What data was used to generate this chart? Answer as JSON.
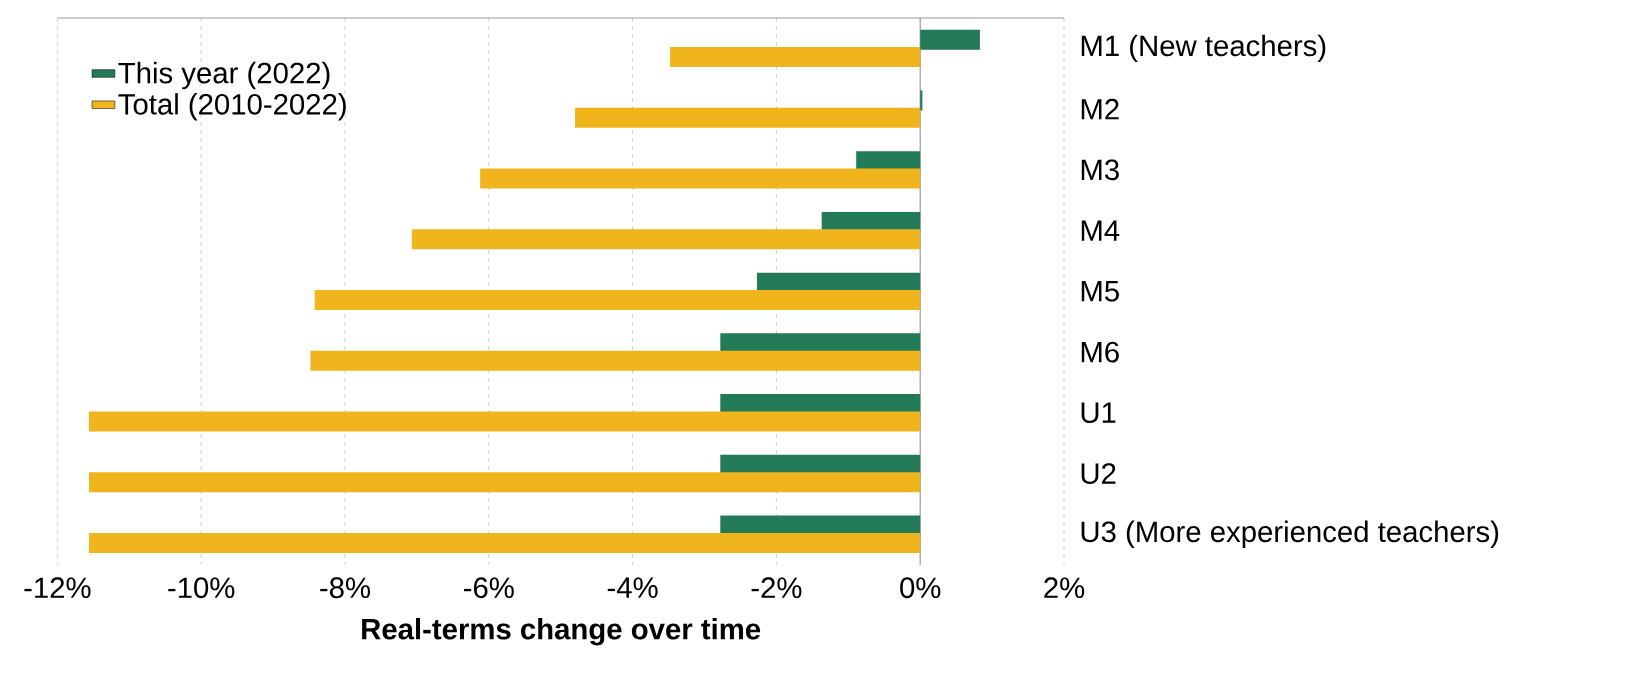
{
  "chart_data": {
    "type": "bar",
    "orientation": "horizontal",
    "xlabel": "Real-terms change over time",
    "categories": [
      "M1 (New teachers)",
      "M2",
      "M3",
      "M4",
      "M5",
      "M6",
      "U1",
      "U2",
      "U3 (More experienced teachers)"
    ],
    "series": [
      {
        "name": "This year (2022)",
        "color": "#237a57",
        "values": [
          0.83,
          0.03,
          -0.89,
          -1.37,
          -2.27,
          -2.78,
          -2.78,
          -2.78,
          -2.78
        ]
      },
      {
        "name": "Total (2010-2022)",
        "color": "#f0b51c",
        "values": [
          -3.48,
          -4.8,
          -6.12,
          -7.07,
          -8.42,
          -8.48,
          -11.56,
          -11.56,
          -11.56
        ]
      }
    ],
    "xlim": [
      -12,
      2
    ],
    "xticks": [
      {
        "value": -12,
        "label": "-12%"
      },
      {
        "value": -10,
        "label": "-10%"
      },
      {
        "value": -8,
        "label": "-8%"
      },
      {
        "value": -6,
        "label": "-6%"
      },
      {
        "value": -4,
        "label": "-4%"
      },
      {
        "value": -2,
        "label": "-2%"
      },
      {
        "value": 0,
        "label": "0%"
      },
      {
        "value": 2,
        "label": "2%"
      }
    ],
    "grid": "x",
    "legend": "top left"
  }
}
